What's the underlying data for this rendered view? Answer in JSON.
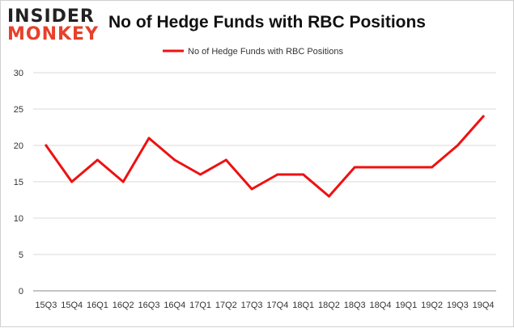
{
  "logo": {
    "line1": "INSIDER",
    "line2": "MONKEY"
  },
  "colors": {
    "series": "#ee1111",
    "grid": "#d9d9d9",
    "axis": "#888888",
    "background": "#ffffff"
  },
  "chart_data": {
    "type": "line",
    "title": "No of Hedge Funds with RBC Positions",
    "xlabel": "",
    "ylabel": "",
    "categories": [
      "15Q3",
      "15Q4",
      "16Q1",
      "16Q2",
      "16Q3",
      "16Q4",
      "17Q1",
      "17Q2",
      "17Q3",
      "17Q4",
      "18Q1",
      "18Q2",
      "18Q3",
      "18Q4",
      "19Q1",
      "19Q2",
      "19Q3",
      "19Q4"
    ],
    "series": [
      {
        "name": "No of Hedge Funds with RBC Positions",
        "values": [
          20,
          15,
          18,
          15,
          21,
          18,
          16,
          18,
          14,
          16,
          16,
          13,
          17,
          17,
          17,
          17,
          20,
          24
        ]
      }
    ],
    "ylim": [
      0,
      30
    ],
    "yticks": [
      0,
      5,
      10,
      15,
      20,
      25,
      30
    ],
    "grid": true,
    "legend": "top-center"
  }
}
